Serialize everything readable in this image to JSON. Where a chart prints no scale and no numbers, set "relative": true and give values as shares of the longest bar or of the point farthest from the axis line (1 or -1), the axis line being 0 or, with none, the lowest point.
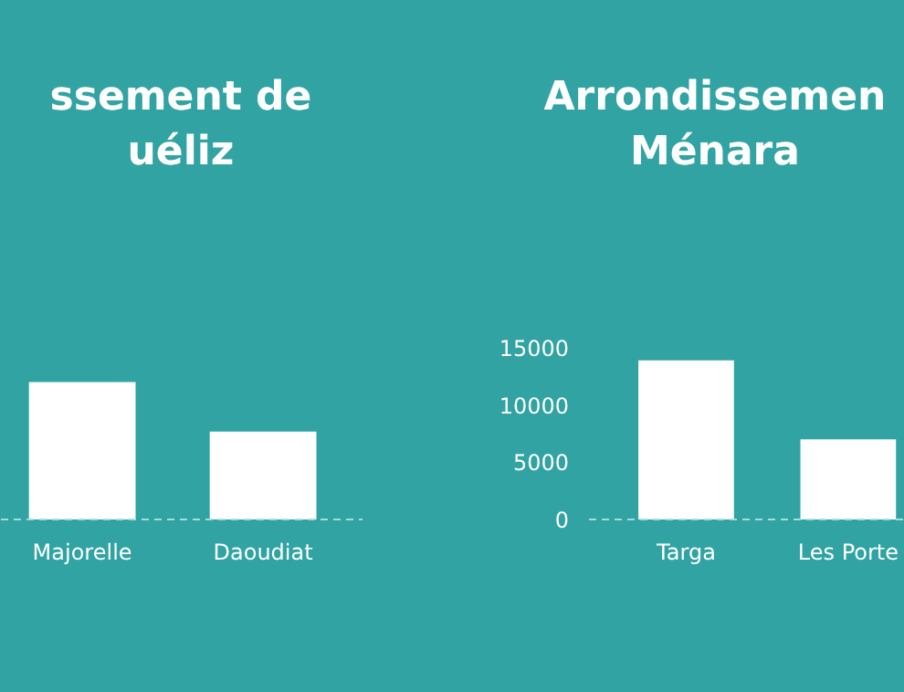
{
  "chart_data": [
    {
      "type": "bar",
      "title": "ssement de\nuéliz",
      "categories": [
        "Majorelle",
        "Daoudiat"
      ],
      "values": [
        1,
        0.64
      ],
      "color": "#ffffff",
      "relative": true,
      "grid": false
    },
    {
      "type": "bar",
      "title": "Arrondissemen\nMénara",
      "categories": [
        "Targa",
        "Les Porte"
      ],
      "values": [
        13900,
        7000
      ],
      "color": "#ffffff",
      "ylim": [
        0,
        15000
      ],
      "yticks": [
        0,
        5000,
        10000,
        15000
      ],
      "grid": false
    }
  ]
}
